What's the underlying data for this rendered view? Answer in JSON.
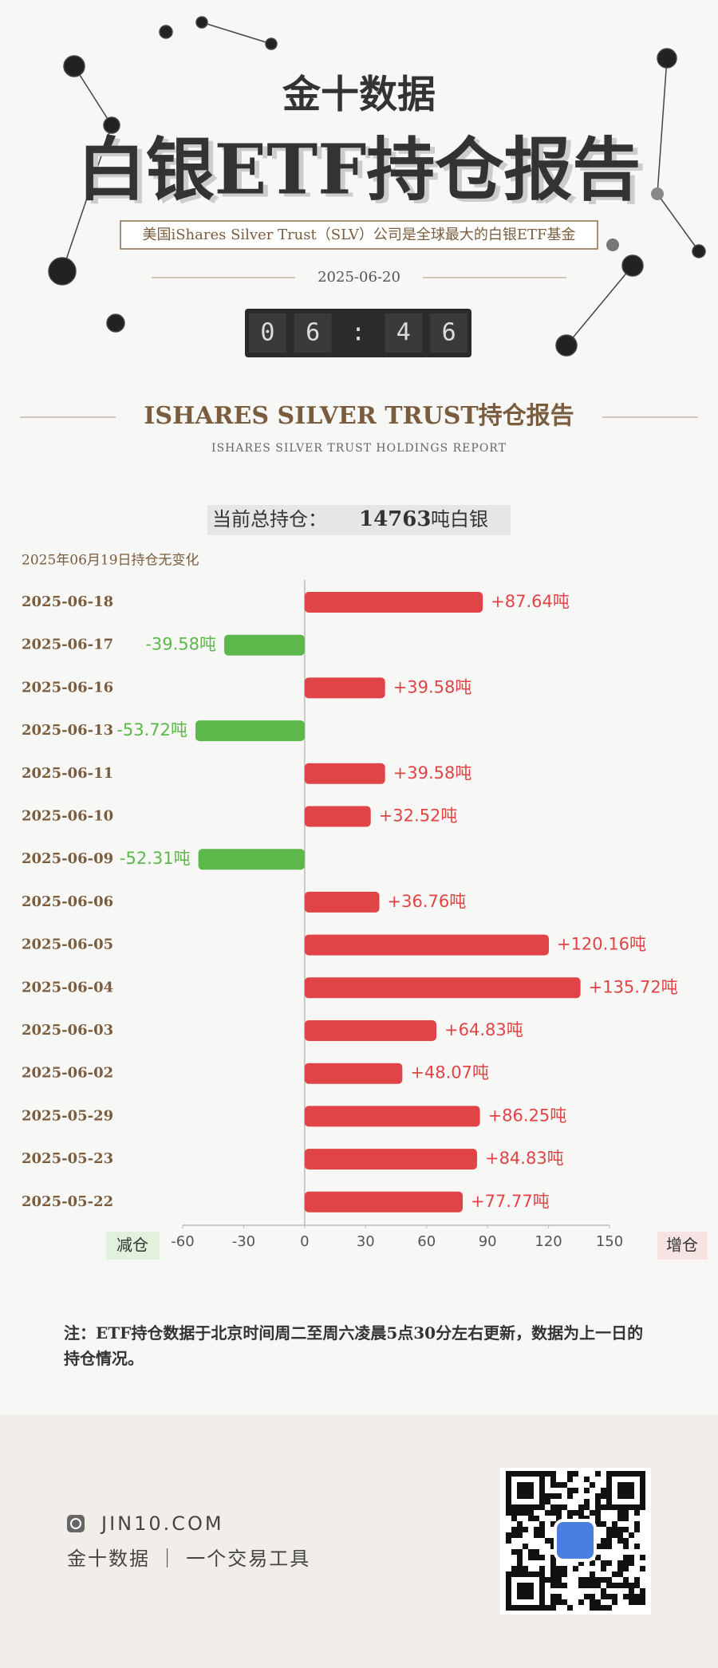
{
  "header": {
    "brand": "金十数据",
    "title": "白银ETF持仓报告",
    "subtitle": "美国iShares Silver Trust（SLV）公司是全球最大的白银ETF基金",
    "date": "2025-06-20",
    "countdown": [
      "0",
      "6",
      ":",
      "4",
      "6"
    ]
  },
  "section": {
    "title": "ISHARES SILVER TRUST持仓报告",
    "subtitle": "ISHARES SILVER TRUST HOLDINGS REPORT"
  },
  "summary": {
    "label": "当前总持仓：",
    "total": 14763,
    "unit": "吨白银"
  },
  "chart_data": {
    "type": "bar",
    "orientation": "horizontal",
    "note": "2025年06月19日持仓无变化",
    "categories": [
      "2025-06-18",
      "2025-06-17",
      "2025-06-16",
      "2025-06-13",
      "2025-06-11",
      "2025-06-10",
      "2025-06-09",
      "2025-06-06",
      "2025-06-05",
      "2025-06-04",
      "2025-06-03",
      "2025-06-02",
      "2025-05-29",
      "2025-05-23",
      "2025-05-22"
    ],
    "values": [
      87.64,
      -39.58,
      39.58,
      -53.72,
      39.58,
      32.52,
      -52.31,
      36.76,
      120.16,
      135.72,
      64.83,
      48.07,
      86.25,
      84.83,
      77.77
    ],
    "value_labels": [
      "+87.64吨",
      "-39.58吨",
      "+39.58吨",
      "-53.72吨",
      "+39.58吨",
      "+32.52吨",
      "-52.31吨",
      "+36.76吨",
      "+120.16吨",
      "+135.72吨",
      "+64.83吨",
      "+48.07吨",
      "+86.25吨",
      "+84.83吨",
      "+77.77吨"
    ],
    "positive_color": "#e04446",
    "negative_color": "#5cb84a",
    "xlim": [
      -60,
      150
    ],
    "xticks": [
      -60,
      -30,
      0,
      30,
      60,
      90,
      120,
      150
    ],
    "left_label": "减仓",
    "right_label": "增仓"
  },
  "footer": {
    "note": "注：ETF持仓数据于北京时间周二至周六凌晨5点30分左右更新，数据为上一日的持仓情况。",
    "site": "JIN10.COM",
    "slogan": "金十数据 ｜ 一个交易工具"
  }
}
